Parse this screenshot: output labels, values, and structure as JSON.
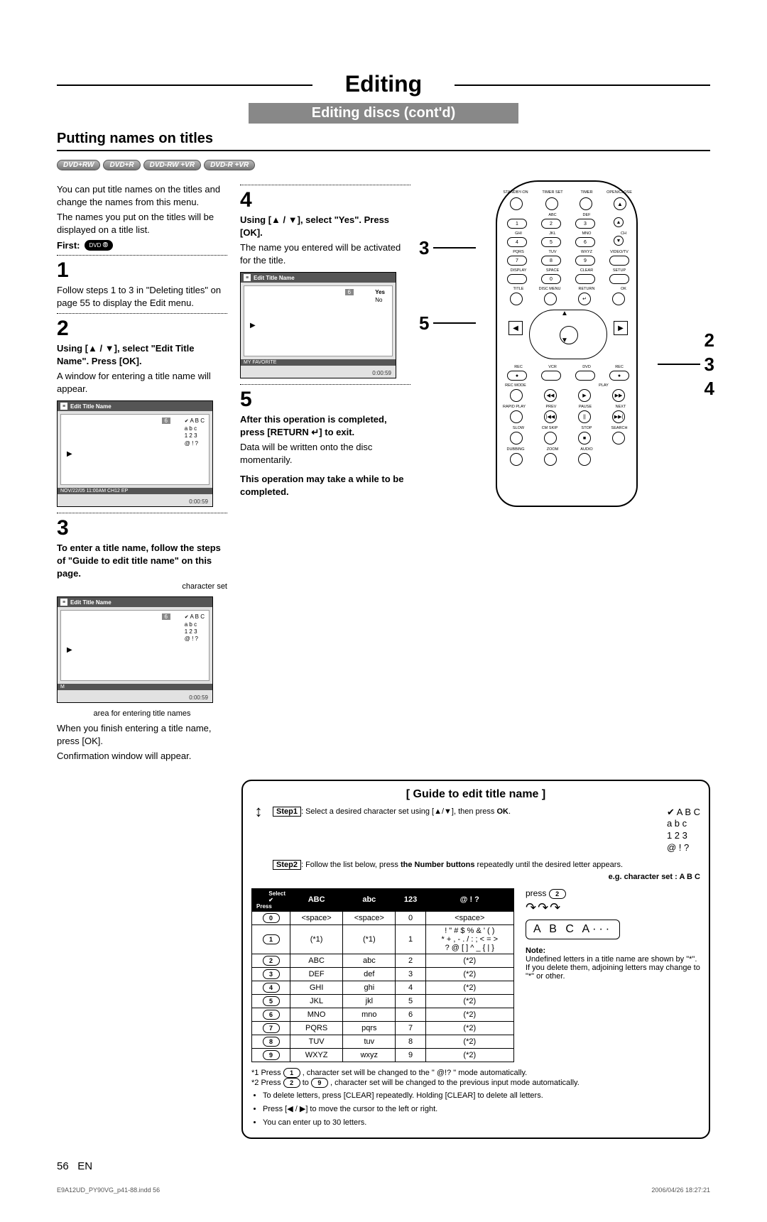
{
  "header": {
    "title": "Editing",
    "subtitle": "Editing discs (cont'd)",
    "section": "Putting names on titles"
  },
  "disc_badges": [
    "DVD+RW",
    "DVD+R",
    "DVD-RW +VR",
    "DVD-R +VR"
  ],
  "intro": {
    "p1": "You can put title names on the titles and change the names from this menu.",
    "p2": "The names you put on the titles will be displayed on a title list.",
    "first_label": "First:",
    "first_icon": "DVD"
  },
  "steps": {
    "s1": {
      "num": "1",
      "text": "Follow steps 1 to 3 in \"Deleting titles\" on page 55 to display the Edit menu."
    },
    "s2": {
      "num": "2",
      "bold": "Using [▲ / ▼], select \"Edit Title Name\". Press [OK].",
      "text": "A window for entering a title name will appear."
    },
    "s3": {
      "num": "3",
      "bold": "To enter a title name, follow the steps of \"Guide to edit title name\" on this page.",
      "charset_label": "character set",
      "area_label": "area for entering title names",
      "p1": "When you finish entering a title name, press [OK].",
      "p2": "Confirmation window will appear."
    },
    "s4": {
      "num": "4",
      "bold": "Using [▲ / ▼], select \"Yes\". Press [OK].",
      "text": "The name you entered will be activated for the title."
    },
    "s5": {
      "num": "5",
      "bold": "After this operation is completed, press [RETURN ↵] to exit.",
      "text": "Data will be written onto the disc momentarily.",
      "note": "This operation may take a while to be completed."
    }
  },
  "screens": {
    "header": "Edit Title Name",
    "tag6": "6",
    "charset": {
      "r1": "A  B  C",
      "r2": "a  b  c",
      "r3": "1  2  3",
      "r4": "@  !  ?"
    },
    "footer_a": "NOV/22/05 11:00AM CH12 EP",
    "footer_b": "MY FAVORITE",
    "footer_m": "M",
    "yes": "Yes",
    "no": "No",
    "timer": "0:00:59"
  },
  "remote_callouts": {
    "left_3": "3",
    "left_5": "5",
    "right_2": "2",
    "right_3": "3",
    "right_4": "4"
  },
  "remote_labels": {
    "standby": "STANDBY-ON",
    "timerset": "TIMER SET",
    "timer": "TIMER",
    "openclose": "OPEN/CLOSE",
    "abc": "ABC",
    "def": "DEF",
    "ghi": "GHI",
    "jkl": "JKL",
    "mno": "MNO",
    "pqrs": "PQRS",
    "tuv": "TUV",
    "wxyz": "WXYZ",
    "videotv": "VIDEO/TV",
    "display": "DISPLAY",
    "space": "SPACE",
    "clear": "CLEAR",
    "setup": "SETUP",
    "title": "TITLE",
    "discmenu": "DISC MENU",
    "return": "RETURN",
    "ok": "OK",
    "rec": "REC",
    "vcr": "VCR",
    "dvd": "DVD",
    "recmode": "REC MODE",
    "play": "PLAY",
    "rapidplay": "RAPID PLAY",
    "prev": "PREV",
    "pause": "PAUSE",
    "next": "NEXT",
    "slow": "SLOW",
    "cmskip": "CM SKIP",
    "stop": "STOP",
    "search": "SEARCH",
    "dubbing": "DUBBING",
    "zoom": "ZOOM",
    "audio": "AUDIO",
    "ch": "CH"
  },
  "guide": {
    "title": "[ Guide to edit title name ]",
    "step1_label": "Step1",
    "step1_text": ": Select a desired character set using [▲/▼], then press ",
    "step1_ok": "OK",
    "step2_label": "Step2",
    "step2_text": ": Follow the list below, press ",
    "step2_bold": "the Number buttons",
    "step2_rest": " repeatedly until the desired letter appears.",
    "eg_label": "e.g. character set :  A B C",
    "sample": {
      "r1": "A B C",
      "r2": "a b c",
      "r3": "1 2 3",
      "r4": "@ ! ?"
    },
    "table": {
      "corner_select": "Select",
      "corner_press": "Press",
      "headers": [
        "ABC",
        "abc",
        "123",
        "@ ! ?"
      ],
      "rows": [
        {
          "n": "0",
          "c": [
            "<space>",
            "<space>",
            "0",
            "<space>"
          ]
        },
        {
          "n": "1",
          "c": [
            "(*1)",
            "(*1)",
            "1",
            "! \" # $ % & ' ( )\n* + , - . / : ; < = >\n? @ [ ] ^ _ { | }"
          ]
        },
        {
          "n": "2",
          "c": [
            "ABC",
            "abc",
            "2",
            "(*2)"
          ]
        },
        {
          "n": "3",
          "c": [
            "DEF",
            "def",
            "3",
            "(*2)"
          ]
        },
        {
          "n": "4",
          "c": [
            "GHI",
            "ghi",
            "4",
            "(*2)"
          ]
        },
        {
          "n": "5",
          "c": [
            "JKL",
            "jkl",
            "5",
            "(*2)"
          ]
        },
        {
          "n": "6",
          "c": [
            "MNO",
            "mno",
            "6",
            "(*2)"
          ]
        },
        {
          "n": "7",
          "c": [
            "PQRS",
            "pqrs",
            "7",
            "(*2)"
          ]
        },
        {
          "n": "8",
          "c": [
            "TUV",
            "tuv",
            "8",
            "(*2)"
          ]
        },
        {
          "n": "9",
          "c": [
            "WXYZ",
            "wxyz",
            "9",
            "(*2)"
          ]
        }
      ]
    },
    "press_label": "press",
    "press_num": "2",
    "cycle": "A  B  C  A···",
    "note_heading": "Note:",
    "note_text": "Undefined letters in a title name are shown by \"*\".  If you delete them, adjoining letters may change to \"*\" or other.",
    "foot1_a": "*1 Press ",
    "foot1_num": "1",
    "foot1_b": " , character set will be changed to the \" @!? \" mode automatically.",
    "foot2_a": "*2 Press ",
    "foot2_n1": "2",
    "foot2_mid": " to ",
    "foot2_n2": "9",
    "foot2_b": " , character set will be changed to the previous input mode automatically.",
    "bullets": [
      "To delete letters, press [CLEAR] repeatedly. Holding [CLEAR] to delete all letters.",
      "Press [◀ / ▶] to move the cursor to the left or right.",
      "You can enter up to 30 letters."
    ]
  },
  "footer": {
    "page": "56",
    "lang": "EN",
    "file": "E9A12UD_PY90VG_p41-88.indd   56",
    "timestamp": "2006/04/26   18:27:21"
  }
}
